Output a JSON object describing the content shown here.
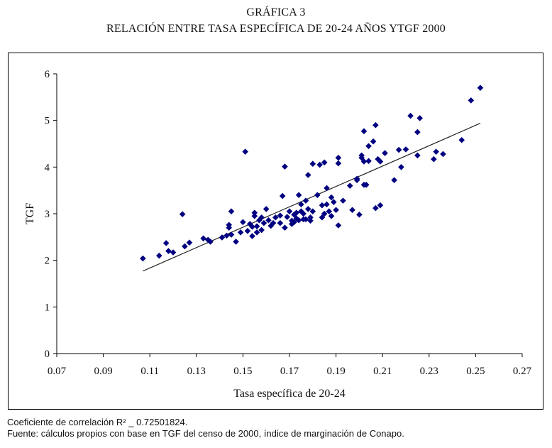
{
  "header": {
    "title_line1": "GRÁFICA 3",
    "title_line2": "RELACIÓN ENTRE TASA ESPECÍFICA DE 20-24 AÑOS YTGF 2000"
  },
  "footer": {
    "correlation": "Coeficiente de correlación R² _ 0.72501824.",
    "source": "Fuente: cálculos propios con base en TGF del censo de 2000, índice de marginación de Conapo."
  },
  "colors": {
    "marker": "#000080",
    "trendline": "#222222",
    "axis": "#000000"
  },
  "chart_data": {
    "type": "scatter",
    "title": "RELACIÓN ENTRE TASA ESPECÍFICA DE 20-24 AÑOS YTGF 2000",
    "xlabel": "Tasa específica de 20-24",
    "ylabel": "TGF",
    "xlim": [
      0.07,
      0.27
    ],
    "ylim": [
      0,
      6
    ],
    "x_ticks": [
      "0.07",
      "0.09",
      "0.11",
      "0.13",
      "0.15",
      "0.17",
      "0.19",
      "0.21",
      "0.23",
      "0.25",
      "0.27"
    ],
    "y_ticks": [
      "0",
      "1",
      "2",
      "3",
      "4",
      "5",
      "6"
    ],
    "grid": false,
    "legend": "none",
    "r_squared": 0.72501824,
    "trendline": {
      "x": [
        0.107,
        0.252
      ],
      "y": [
        1.77,
        4.94
      ]
    },
    "points": [
      [
        0.107,
        2.04
      ],
      [
        0.114,
        2.1
      ],
      [
        0.117,
        2.37
      ],
      [
        0.118,
        2.2
      ],
      [
        0.12,
        2.17
      ],
      [
        0.124,
        2.99
      ],
      [
        0.125,
        2.3
      ],
      [
        0.127,
        2.38
      ],
      [
        0.133,
        2.47
      ],
      [
        0.135,
        2.44
      ],
      [
        0.136,
        2.4
      ],
      [
        0.141,
        2.49
      ],
      [
        0.143,
        2.53
      ],
      [
        0.144,
        2.76
      ],
      [
        0.144,
        2.7
      ],
      [
        0.145,
        2.55
      ],
      [
        0.145,
        3.05
      ],
      [
        0.147,
        2.4
      ],
      [
        0.149,
        2.6
      ],
      [
        0.15,
        2.82
      ],
      [
        0.151,
        4.33
      ],
      [
        0.152,
        2.63
      ],
      [
        0.153,
        2.78
      ],
      [
        0.154,
        2.52
      ],
      [
        0.154,
        2.72
      ],
      [
        0.155,
        2.95
      ],
      [
        0.155,
        3.02
      ],
      [
        0.156,
        2.6
      ],
      [
        0.156,
        2.73
      ],
      [
        0.157,
        2.86
      ],
      [
        0.158,
        2.92
      ],
      [
        0.158,
        2.65
      ],
      [
        0.159,
        2.8
      ],
      [
        0.16,
        3.1
      ],
      [
        0.161,
        2.86
      ],
      [
        0.162,
        2.74
      ],
      [
        0.163,
        2.8
      ],
      [
        0.164,
        2.92
      ],
      [
        0.166,
        2.96
      ],
      [
        0.166,
        2.8
      ],
      [
        0.167,
        3.38
      ],
      [
        0.168,
        2.7
      ],
      [
        0.168,
        4.01
      ],
      [
        0.169,
        2.93
      ],
      [
        0.17,
        3.05
      ],
      [
        0.171,
        2.85
      ],
      [
        0.171,
        2.78
      ],
      [
        0.172,
        2.98
      ],
      [
        0.172,
        2.82
      ],
      [
        0.173,
        3.02
      ],
      [
        0.173,
        2.9
      ],
      [
        0.174,
        3.4
      ],
      [
        0.174,
        2.86
      ],
      [
        0.175,
        3.05
      ],
      [
        0.175,
        3.2
      ],
      [
        0.176,
        2.88
      ],
      [
        0.176,
        3.0
      ],
      [
        0.177,
        2.88
      ],
      [
        0.177,
        3.28
      ],
      [
        0.178,
        3.1
      ],
      [
        0.178,
        3.83
      ],
      [
        0.179,
        2.92
      ],
      [
        0.179,
        2.85
      ],
      [
        0.18,
        3.05
      ],
      [
        0.18,
        4.07
      ],
      [
        0.182,
        3.4
      ],
      [
        0.183,
        4.05
      ],
      [
        0.184,
        2.92
      ],
      [
        0.184,
        3.18
      ],
      [
        0.185,
        3.0
      ],
      [
        0.185,
        4.1
      ],
      [
        0.186,
        3.55
      ],
      [
        0.186,
        3.2
      ],
      [
        0.187,
        3.05
      ],
      [
        0.188,
        3.35
      ],
      [
        0.188,
        2.95
      ],
      [
        0.189,
        3.25
      ],
      [
        0.19,
        3.08
      ],
      [
        0.191,
        4.2
      ],
      [
        0.191,
        4.08
      ],
      [
        0.191,
        2.75
      ],
      [
        0.193,
        3.28
      ],
      [
        0.196,
        3.6
      ],
      [
        0.197,
        3.08
      ],
      [
        0.199,
        3.72
      ],
      [
        0.199,
        3.75
      ],
      [
        0.2,
        2.98
      ],
      [
        0.201,
        4.25
      ],
      [
        0.201,
        4.2
      ],
      [
        0.202,
        4.77
      ],
      [
        0.202,
        4.12
      ],
      [
        0.202,
        3.62
      ],
      [
        0.203,
        3.62
      ],
      [
        0.204,
        4.45
      ],
      [
        0.204,
        4.13
      ],
      [
        0.206,
        4.55
      ],
      [
        0.207,
        3.12
      ],
      [
        0.207,
        4.9
      ],
      [
        0.208,
        4.17
      ],
      [
        0.209,
        3.18
      ],
      [
        0.209,
        4.12
      ],
      [
        0.211,
        4.3
      ],
      [
        0.215,
        3.72
      ],
      [
        0.217,
        4.37
      ],
      [
        0.218,
        4.0
      ],
      [
        0.22,
        4.38
      ],
      [
        0.222,
        5.1
      ],
      [
        0.225,
        4.75
      ],
      [
        0.225,
        4.25
      ],
      [
        0.226,
        5.05
      ],
      [
        0.232,
        4.17
      ],
      [
        0.233,
        4.33
      ],
      [
        0.236,
        4.28
      ],
      [
        0.244,
        4.58
      ],
      [
        0.248,
        5.43
      ],
      [
        0.252,
        5.7
      ]
    ]
  }
}
